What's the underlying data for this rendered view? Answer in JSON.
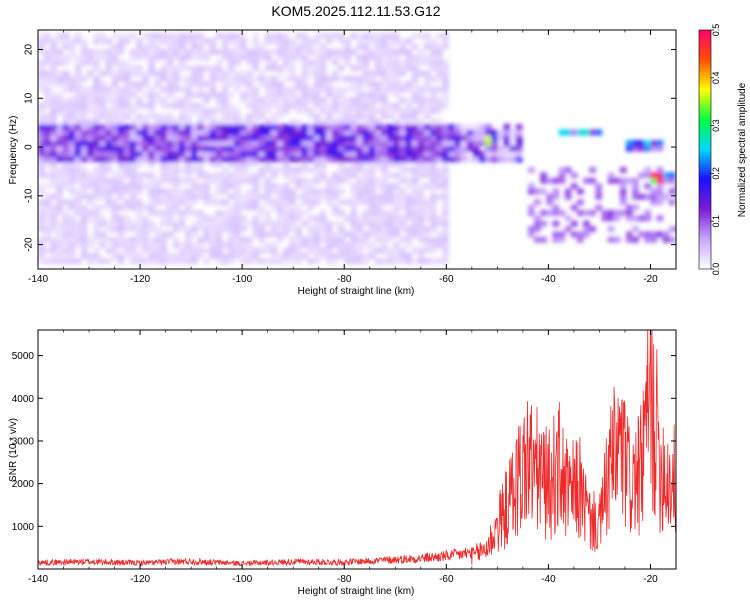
{
  "title": "KOM5.2025.112.11.53.G12",
  "chart_data": [
    {
      "type": "heatmap",
      "xlabel": "Height of straight line (km)",
      "ylabel": "Frequency (Hz)",
      "xlim": [
        -140,
        -15
      ],
      "ylim": [
        -25,
        24
      ],
      "x_ticks": [
        -140,
        -120,
        -100,
        -80,
        -60,
        -40,
        -20
      ],
      "y_ticks": [
        -20,
        -10,
        0,
        10,
        20
      ],
      "colorbar": {
        "label": "Normalized spectral amplitude",
        "range": [
          0,
          0.5
        ],
        "ticks": [
          0.0,
          0.1,
          0.2,
          0.3,
          0.4,
          0.5
        ],
        "tick_labels": [
          "0.0",
          "0.1",
          "0.2",
          "0.3",
          "0.4",
          "0.5"
        ],
        "colors": [
          "#ffffff",
          "#c9a7ff",
          "#7a1ed6",
          "#1b10ff",
          "#00d8ff",
          "#00ff40",
          "#ffff00",
          "#ff5000",
          "#ff006e"
        ]
      },
      "features": [
        {
          "x": [
            -140,
            -45
          ],
          "y": [
            -3,
            5
          ],
          "level": 0.12
        },
        {
          "x": [
            -140,
            -60
          ],
          "y": [
            -24,
            23
          ],
          "level": 0.03
        },
        {
          "x": [
            -52,
            -50
          ],
          "y": [
            0,
            2
          ],
          "level": 0.35
        },
        {
          "x": [
            -38,
            -30
          ],
          "y": [
            2,
            4
          ],
          "level": 0.2
        },
        {
          "x": [
            -25,
            -18
          ],
          "y": [
            -1,
            1
          ],
          "level": 0.18
        },
        {
          "x": [
            -20,
            -15
          ],
          "y": [
            -7,
            -5
          ],
          "level": 0.42
        }
      ]
    },
    {
      "type": "line",
      "xlabel": "Height of straight line (km)",
      "ylabel": "SNR (10 * v/v)",
      "xlim": [
        -140,
        -15
      ],
      "ylim": [
        0,
        5600
      ],
      "x_ticks": [
        -140,
        -120,
        -100,
        -80,
        -60,
        -40,
        -20
      ],
      "y_ticks": [
        1000,
        2000,
        3000,
        4000,
        5000
      ],
      "color": "#ee2b2b",
      "x": [
        -140,
        -130,
        -120,
        -110,
        -100,
        -90,
        -80,
        -70,
        -65,
        -60,
        -55,
        -52,
        -50,
        -48,
        -46,
        -44,
        -42,
        -40,
        -38,
        -36,
        -34,
        -32,
        -30,
        -28,
        -26,
        -24,
        -22,
        -20,
        -18,
        -16,
        -15
      ],
      "y": [
        150,
        170,
        140,
        180,
        130,
        170,
        160,
        220,
        250,
        300,
        380,
        650,
        1300,
        1900,
        2700,
        3300,
        2900,
        2500,
        3100,
        2200,
        2500,
        1500,
        1300,
        3000,
        3700,
        2600,
        2800,
        5300,
        3200,
        2600,
        2700
      ]
    }
  ]
}
